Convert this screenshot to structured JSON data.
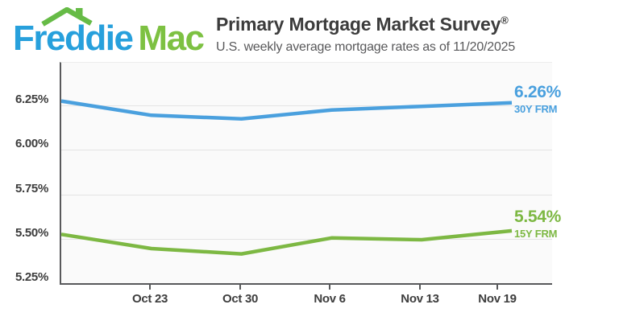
{
  "header": {
    "logo": {
      "word1": "Freddie",
      "word2": "Mac",
      "blue": "#27a0dc",
      "green": "#7dc142",
      "roof_green": "#66bb46"
    },
    "title": "Primary Mortgage Market Survey",
    "registered_mark": "®",
    "subtitle": "U.S. weekly average mortgage rates as of 11/20/2025"
  },
  "chart_data": {
    "type": "line",
    "x_dates": [
      "10/16/2025",
      "10/23/2025",
      "10/30/2025",
      "11/6/2025",
      "11/13/2025",
      "11/20/2025"
    ],
    "x_days": [
      0,
      7,
      14,
      21,
      28,
      35
    ],
    "x_ticks": [
      {
        "label": "Oct 23",
        "day": 7
      },
      {
        "label": "Oct 30",
        "day": 14
      },
      {
        "label": "Nov 6",
        "day": 21
      },
      {
        "label": "Nov 13",
        "day": 28
      },
      {
        "label": "Nov 19",
        "day": 34
      }
    ],
    "ylim": [
      5.25,
      6.49
    ],
    "y_ticks": [
      {
        "label": "6.25%",
        "value": 6.25
      },
      {
        "label": "6.00%",
        "value": 6.0
      },
      {
        "label": "5.75%",
        "value": 5.75
      },
      {
        "label": "5.50%",
        "value": 5.5
      },
      {
        "label": "5.25%",
        "value": 5.25
      }
    ],
    "grid": true,
    "legend_position": "line-end-right",
    "series": [
      {
        "name": "30Y FRM",
        "color": "#4aa0de",
        "values": [
          6.27,
          6.19,
          6.17,
          6.22,
          6.24,
          6.26
        ],
        "end_label": {
          "rate": "6.26%",
          "name": "30Y FRM"
        }
      },
      {
        "name": "15Y FRM",
        "color": "#7db843",
        "values": [
          5.52,
          5.44,
          5.41,
          5.5,
          5.49,
          5.54
        ],
        "end_label": {
          "rate": "5.54%",
          "name": "15Y FRM"
        }
      }
    ]
  }
}
